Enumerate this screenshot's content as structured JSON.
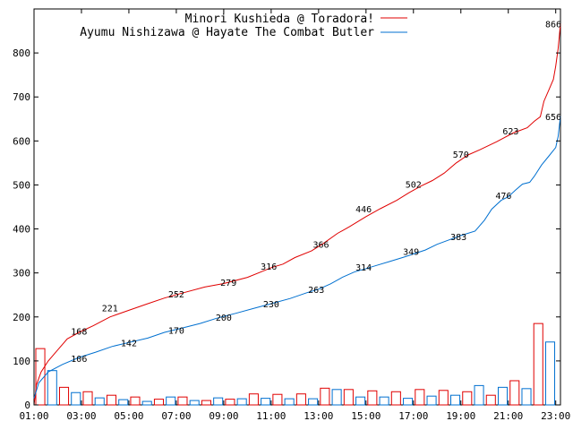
{
  "chart_data": {
    "type": "line",
    "x_tick_labels": [
      "01:00",
      "03:00",
      "05:00",
      "07:00",
      "09:00",
      "11:00",
      "13:00",
      "15:00",
      "17:00",
      "19:00",
      "21:00",
      "23:00"
    ],
    "y_ticks": [
      0,
      100,
      200,
      300,
      400,
      500,
      600,
      700,
      800
    ],
    "ylim": [
      0,
      900
    ],
    "xlim": [
      1.0,
      23.2
    ],
    "grid": false,
    "legend_position": "top-right",
    "series": [
      {
        "name": "Minori Kushieda @ Toradora!",
        "color": "#e00000",
        "line": [
          [
            1.0,
            0
          ],
          [
            1.1,
            45
          ],
          [
            1.3,
            75
          ],
          [
            1.6,
            100
          ],
          [
            2.0,
            125
          ],
          [
            2.4,
            150
          ],
          [
            2.9,
            165
          ],
          [
            3.5,
            180
          ],
          [
            4.2,
            200
          ],
          [
            5.0,
            215
          ],
          [
            5.8,
            230
          ],
          [
            6.5,
            243
          ],
          [
            7.3,
            255
          ],
          [
            8.2,
            268
          ],
          [
            9.0,
            276
          ],
          [
            10.0,
            290
          ],
          [
            10.6,
            303
          ],
          [
            11.0,
            312
          ],
          [
            11.5,
            320
          ],
          [
            12.0,
            335
          ],
          [
            12.7,
            350
          ],
          [
            13.2,
            367
          ],
          [
            13.8,
            390
          ],
          [
            14.3,
            405
          ],
          [
            15.0,
            428
          ],
          [
            15.6,
            446
          ],
          [
            16.3,
            465
          ],
          [
            16.8,
            482
          ],
          [
            17.3,
            497
          ],
          [
            17.8,
            510
          ],
          [
            18.3,
            527
          ],
          [
            18.8,
            550
          ],
          [
            19.3,
            568
          ],
          [
            19.8,
            580
          ],
          [
            20.5,
            598
          ],
          [
            21.2,
            618
          ],
          [
            21.8,
            630
          ],
          [
            22.1,
            645
          ],
          [
            22.35,
            655
          ],
          [
            22.5,
            690
          ],
          [
            22.7,
            715
          ],
          [
            22.9,
            740
          ],
          [
            23.0,
            770
          ],
          [
            23.1,
            810
          ],
          [
            23.2,
            866
          ]
        ],
        "labels": [
          [
            2.9,
            168
          ],
          [
            4.2,
            221
          ],
          [
            7.0,
            252
          ],
          [
            9.2,
            279
          ],
          [
            10.9,
            316
          ],
          [
            13.1,
            366
          ],
          [
            14.9,
            446
          ],
          [
            17.0,
            502
          ],
          [
            19.0,
            570
          ],
          [
            21.1,
            623
          ],
          [
            22.9,
            866
          ]
        ]
      },
      {
        "name": "Ayumu Nishizawa @ Hayate The Combat Butler",
        "color": "#0070d0",
        "line": [
          [
            1.0,
            15
          ],
          [
            1.2,
            50
          ],
          [
            1.6,
            75
          ],
          [
            2.2,
            92
          ],
          [
            2.9,
            108
          ],
          [
            3.6,
            120
          ],
          [
            4.3,
            133
          ],
          [
            5.0,
            142
          ],
          [
            5.8,
            152
          ],
          [
            6.5,
            165
          ],
          [
            7.2,
            174
          ],
          [
            8.0,
            185
          ],
          [
            8.7,
            197
          ],
          [
            9.5,
            208
          ],
          [
            10.3,
            220
          ],
          [
            11.0,
            230
          ],
          [
            11.8,
            242
          ],
          [
            12.5,
            255
          ],
          [
            13.0,
            263
          ],
          [
            13.5,
            275
          ],
          [
            14.0,
            290
          ],
          [
            14.5,
            302
          ],
          [
            15.0,
            310
          ],
          [
            15.5,
            318
          ],
          [
            16.0,
            326
          ],
          [
            16.6,
            336
          ],
          [
            17.0,
            343
          ],
          [
            17.5,
            352
          ],
          [
            18.0,
            365
          ],
          [
            18.5,
            375
          ],
          [
            19.0,
            385
          ],
          [
            19.6,
            395
          ],
          [
            20.0,
            420
          ],
          [
            20.3,
            445
          ],
          [
            20.7,
            465
          ],
          [
            21.0,
            473
          ],
          [
            21.3,
            488
          ],
          [
            21.6,
            502
          ],
          [
            21.9,
            506
          ],
          [
            22.1,
            520
          ],
          [
            22.4,
            545
          ],
          [
            22.7,
            565
          ],
          [
            23.0,
            585
          ],
          [
            23.1,
            610
          ],
          [
            23.2,
            656
          ]
        ],
        "labels": [
          [
            2.9,
            106
          ],
          [
            5.0,
            142
          ],
          [
            7.0,
            170
          ],
          [
            9.0,
            200
          ],
          [
            11.0,
            230
          ],
          [
            12.9,
            263
          ],
          [
            14.9,
            314
          ],
          [
            16.9,
            349
          ],
          [
            18.9,
            383
          ],
          [
            20.8,
            476
          ],
          [
            22.9,
            656
          ]
        ]
      }
    ],
    "bars": {
      "red": [
        [
          1.0,
          128
        ],
        [
          2.0,
          40
        ],
        [
          3.0,
          30
        ],
        [
          4.0,
          22
        ],
        [
          5.0,
          18
        ],
        [
          6.0,
          13
        ],
        [
          7.0,
          18
        ],
        [
          8.0,
          10
        ],
        [
          9.0,
          13
        ],
        [
          10.0,
          25
        ],
        [
          11.0,
          24
        ],
        [
          12.0,
          25
        ],
        [
          13.0,
          38
        ],
        [
          14.0,
          35
        ],
        [
          15.0,
          32
        ],
        [
          16.0,
          30
        ],
        [
          17.0,
          35
        ],
        [
          18.0,
          33
        ],
        [
          19.0,
          30
        ],
        [
          20.0,
          22
        ],
        [
          21.0,
          55
        ],
        [
          22.0,
          185
        ]
      ],
      "blue": [
        [
          1.5,
          78
        ],
        [
          2.5,
          28
        ],
        [
          3.5,
          16
        ],
        [
          4.5,
          12
        ],
        [
          5.5,
          8
        ],
        [
          6.5,
          18
        ],
        [
          7.5,
          10
        ],
        [
          8.5,
          16
        ],
        [
          9.5,
          14
        ],
        [
          10.5,
          15
        ],
        [
          11.5,
          14
        ],
        [
          12.5,
          14
        ],
        [
          13.5,
          35
        ],
        [
          14.5,
          18
        ],
        [
          15.5,
          18
        ],
        [
          16.5,
          15
        ],
        [
          17.5,
          20
        ],
        [
          18.5,
          22
        ],
        [
          19.5,
          44
        ],
        [
          20.5,
          40
        ],
        [
          21.5,
          37
        ],
        [
          22.5,
          143
        ]
      ]
    }
  }
}
